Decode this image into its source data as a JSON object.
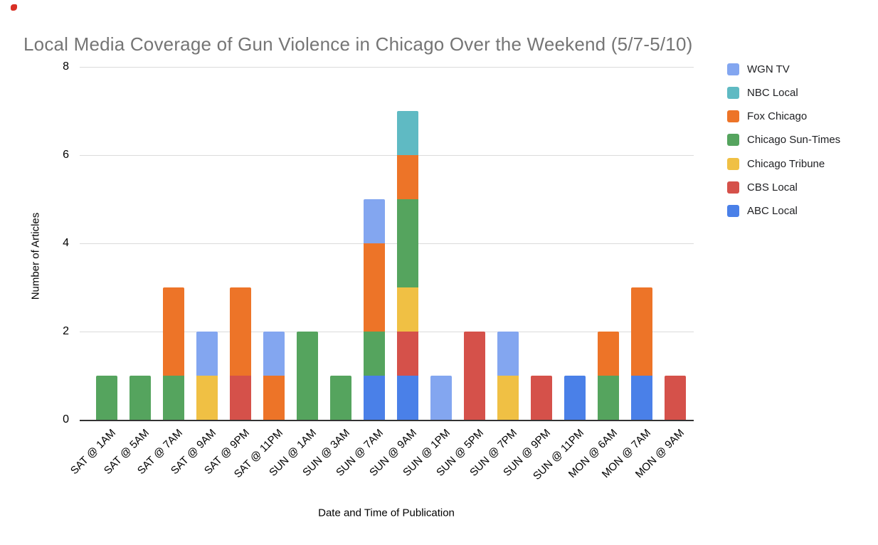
{
  "style": {
    "title_color": "#757575",
    "axis_text_color": "#000000",
    "gridline_color": "#DBDBDB",
    "baseline_color": "#333333",
    "legend_text_color": "#202124",
    "marker_color": "#D93025",
    "background": "#FFFFFF"
  },
  "chart_data": {
    "type": "bar",
    "stacked": true,
    "title": "Local Media Coverage of Gun Violence in Chicago Over the Weekend (5/7-5/10)",
    "xlabel": "Date and Time of Publication",
    "ylabel": "Number of Articles",
    "ylim": [
      0,
      8
    ],
    "yticks": [
      0,
      2,
      4,
      6,
      8
    ],
    "grid": true,
    "legend_position": "right",
    "categories": [
      "SAT @ 1AM",
      "SAT @ 5AM",
      "SAT @ 7AM",
      "SAT @ 9AM",
      "SAT @ 9PM",
      "SAT @ 11PM",
      "SUN @ 1AM",
      "SUN @ 3AM",
      "SUN @ 7AM",
      "SUN @ 9AM",
      "SUN @ 1PM",
      "SUN @ 5PM",
      "SUN @ 7PM",
      "SUN @ 9PM",
      "SUN @ 11PM",
      "MON @ 6AM",
      "MON @ 7AM",
      "MON @ 9AM"
    ],
    "series": [
      {
        "name": "WGN TV",
        "color": "#83A6F0",
        "values": [
          0,
          0,
          0,
          1,
          0,
          1,
          0,
          0,
          1,
          0,
          1,
          0,
          1,
          0,
          0,
          0,
          0,
          0
        ]
      },
      {
        "name": "NBC Local",
        "color": "#5FBAC3",
        "values": [
          0,
          0,
          0,
          0,
          0,
          0,
          0,
          0,
          0,
          1,
          0,
          0,
          0,
          0,
          0,
          0,
          0,
          0
        ]
      },
      {
        "name": "Fox Chicago",
        "color": "#ED7428",
        "values": [
          0,
          0,
          2,
          0,
          2,
          1,
          0,
          0,
          2,
          1,
          0,
          0,
          0,
          0,
          0,
          1,
          2,
          0
        ]
      },
      {
        "name": "Chicago Sun-Times",
        "color": "#55A45E",
        "values": [
          1,
          1,
          1,
          0,
          0,
          0,
          2,
          1,
          1,
          2,
          0,
          0,
          0,
          0,
          0,
          1,
          0,
          0
        ]
      },
      {
        "name": "Chicago Tribune",
        "color": "#F0C044",
        "values": [
          0,
          0,
          0,
          1,
          0,
          0,
          0,
          0,
          0,
          1,
          0,
          0,
          1,
          0,
          0,
          0,
          0,
          0
        ]
      },
      {
        "name": "CBS Local",
        "color": "#D5514A",
        "values": [
          0,
          0,
          0,
          0,
          1,
          0,
          0,
          0,
          0,
          1,
          0,
          2,
          0,
          1,
          0,
          0,
          0,
          1
        ]
      },
      {
        "name": "ABC Local",
        "color": "#4A80E8",
        "values": [
          0,
          0,
          0,
          0,
          0,
          0,
          0,
          0,
          1,
          1,
          0,
          0,
          0,
          0,
          1,
          0,
          1,
          0
        ]
      }
    ],
    "stack_order_bottom_to_top": [
      "ABC Local",
      "CBS Local",
      "Chicago Tribune",
      "Chicago Sun-Times",
      "Fox Chicago",
      "NBC Local",
      "WGN TV"
    ],
    "category_totals": [
      1,
      1,
      3,
      2,
      3,
      2,
      2,
      1,
      5,
      7,
      1,
      2,
      2,
      1,
      1,
      2,
      3,
      1
    ]
  }
}
